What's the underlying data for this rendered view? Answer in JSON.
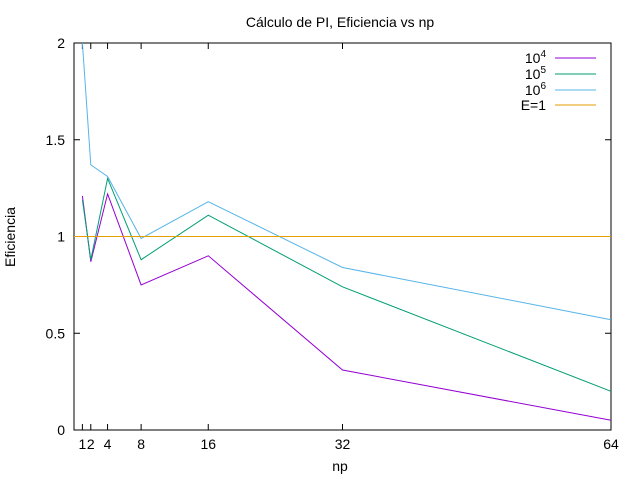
{
  "chart_data": {
    "type": "line",
    "title": "Cálculo de PI, Eficiencia vs np",
    "xlabel": "np",
    "ylabel": "Eficiencia",
    "xlim": [
      0,
      64
    ],
    "ylim": [
      0,
      2
    ],
    "xticks": [
      1,
      2,
      4,
      8,
      16,
      32,
      64
    ],
    "yticks": [
      0,
      0.5,
      1,
      1.5,
      2
    ],
    "ytick_labels": [
      "0",
      "0.5",
      "1",
      "1.5",
      "2"
    ],
    "grid": false,
    "legend_position": "top-right",
    "x": [
      1,
      2,
      4,
      8,
      16,
      32,
      64
    ],
    "series": [
      {
        "name_base": "10",
        "name_exp": "4",
        "color": "#9400d3",
        "values": [
          1.21,
          0.87,
          1.22,
          0.75,
          0.9,
          0.31,
          0.05
        ]
      },
      {
        "name_base": "10",
        "name_exp": "5",
        "color": "#009e73",
        "values": [
          1.19,
          0.88,
          1.3,
          0.88,
          1.11,
          0.74,
          0.2
        ]
      },
      {
        "name_base": "10",
        "name_exp": "6",
        "color": "#56b4e9",
        "values": [
          2.0,
          1.37,
          1.31,
          0.99,
          1.18,
          0.84,
          0.57
        ]
      }
    ],
    "reference_line": {
      "name": "E=1",
      "y": 1,
      "color": "#e69f00"
    }
  }
}
